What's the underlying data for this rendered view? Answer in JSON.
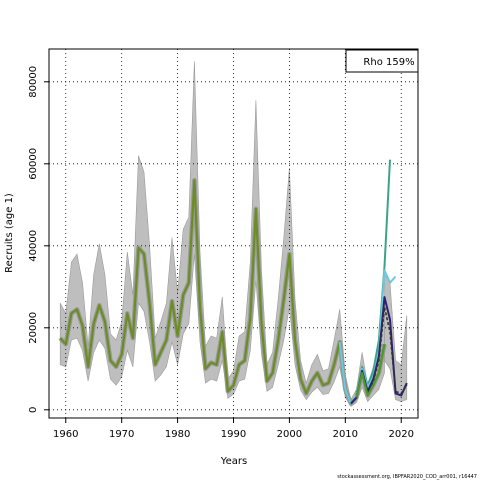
{
  "chart_data": {
    "type": "line",
    "title": "",
    "xlabel": "Years",
    "ylabel": "Recruits (age 1)",
    "xlim": [
      1957,
      2023
    ],
    "ylim": [
      -2000,
      88000
    ],
    "x_ticks": [
      1960,
      1970,
      1980,
      1990,
      2000,
      2010,
      2020
    ],
    "y_ticks": [
      0,
      20000,
      40000,
      60000,
      80000
    ],
    "grid": "dotted",
    "legend_placement": "top-right",
    "legend_text": "Rho 159%",
    "credit": "stockassessment.org, IBPFAR2020_COD_arr001, r16447",
    "colors": {
      "band": "#bebebe",
      "band_edge": "#9a9a9a",
      "base_line": "#6b8e23",
      "retro_teal": "#3aa38a",
      "retro_cyan": "#6fc7dc",
      "retro_navy": "#2b2170",
      "retro_dark": "#333333",
      "retro_green": "#4d9a2a"
    },
    "base": {
      "x": [
        1959,
        1960,
        1961,
        1962,
        1963,
        1964,
        1965,
        1966,
        1967,
        1968,
        1969,
        1970,
        1971,
        1972,
        1973,
        1974,
        1975,
        1976,
        1977,
        1978,
        1979,
        1980,
        1981,
        1982,
        1983,
        1984,
        1985,
        1986,
        1987,
        1988,
        1989,
        1990,
        1991,
        1992,
        1993,
        1994,
        1995,
        1996,
        1997,
        1998,
        1999,
        2000,
        2001,
        2002,
        2003,
        2004,
        2005,
        2006,
        2007,
        2008,
        2009,
        2010,
        2011,
        2012,
        2013,
        2014,
        2015,
        2016,
        2017
      ],
      "y": [
        17500,
        16000,
        23500,
        24500,
        20500,
        10500,
        21000,
        25500,
        21500,
        12000,
        10500,
        13500,
        23500,
        17500,
        39500,
        38000,
        26000,
        11000,
        14000,
        17000,
        26500,
        18000,
        28000,
        31000,
        56000,
        25000,
        10000,
        11500,
        11000,
        19000,
        4500,
        6000,
        11000,
        12000,
        22500,
        49000,
        21000,
        7000,
        9000,
        17000,
        27000,
        38000,
        17000,
        7500,
        4000,
        7000,
        9000,
        6000,
        6500,
        11000,
        16500,
        5000,
        1500,
        3000,
        9000,
        3500,
        6000,
        9000,
        16000
      ],
      "lower": [
        11000,
        10500,
        17000,
        17500,
        14500,
        7000,
        14000,
        17000,
        15000,
        7500,
        6000,
        8000,
        14500,
        10500,
        26000,
        24000,
        16500,
        7000,
        8500,
        10500,
        16500,
        11000,
        18500,
        21000,
        38000,
        16500,
        6500,
        7500,
        7000,
        12000,
        2800,
        3800,
        7000,
        7500,
        14500,
        31500,
        13500,
        4500,
        5500,
        11000,
        17000,
        25000,
        11000,
        4800,
        2500,
        4300,
        5500,
        3700,
        4000,
        6800,
        10500,
        3000,
        800,
        1800,
        5500,
        2000,
        3500,
        5000,
        9000
      ],
      "upper": [
        26000,
        23500,
        36000,
        38000,
        31000,
        15500,
        33000,
        40500,
        33000,
        18500,
        17000,
        21500,
        38500,
        28000,
        62000,
        58000,
        40000,
        17500,
        21500,
        26000,
        42000,
        28500,
        44000,
        47000,
        85000,
        38500,
        15500,
        18000,
        17500,
        27500,
        7500,
        9500,
        18000,
        19000,
        36000,
        75500,
        34000,
        11000,
        14000,
        27000,
        42000,
        59000,
        27000,
        12000,
        6500,
        11000,
        13500,
        9500,
        10000,
        17000,
        24500,
        8500,
        2500,
        5000,
        14000,
        6000,
        10500,
        15000,
        27000
      ]
    },
    "series": [
      {
        "color_key": "retro_teal",
        "x": [
          2009,
          2010,
          2011,
          2012,
          2013,
          2014,
          2015,
          2016,
          2017,
          2018
        ],
        "y": [
          16500,
          5000,
          1500,
          3500,
          10500,
          6000,
          9500,
          17000,
          35000,
          61000
        ]
      },
      {
        "color_key": "retro_cyan",
        "x": [
          2009,
          2010,
          2011,
          2012,
          2013,
          2014,
          2015,
          2016,
          2017,
          2018,
          2019
        ],
        "y": [
          16500,
          5000,
          1500,
          3500,
          10000,
          5500,
          8000,
          14000,
          34000,
          31000,
          32500
        ]
      },
      {
        "color_key": "retro_navy",
        "x": [
          2011,
          2012,
          2013,
          2014,
          2015,
          2016,
          2017,
          2018,
          2019,
          2020,
          2021
        ],
        "y": [
          1500,
          3000,
          9500,
          4500,
          7500,
          13000,
          27500,
          22000,
          4000,
          3500,
          6500
        ]
      },
      {
        "color_key": "retro_dark",
        "dashed": true,
        "x": [
          2012,
          2013,
          2014,
          2015,
          2016,
          2017,
          2018,
          2019,
          2020,
          2021
        ],
        "y": [
          3000,
          9000,
          4000,
          7000,
          12000,
          25000,
          19000,
          4500,
          4000,
          6000
        ]
      },
      {
        "color_key": "retro_green",
        "x": [
          2012,
          2013,
          2014,
          2015,
          2016,
          2017
        ],
        "y": [
          3000,
          9000,
          3500,
          6000,
          9000,
          16000
        ]
      }
    ],
    "band_tail": {
      "x": [
        2017,
        2018,
        2019,
        2020,
        2021
      ],
      "lower": [
        12000,
        10000,
        2500,
        2000,
        2500
      ],
      "upper": [
        33000,
        31000,
        12000,
        11000,
        23000
      ]
    }
  }
}
